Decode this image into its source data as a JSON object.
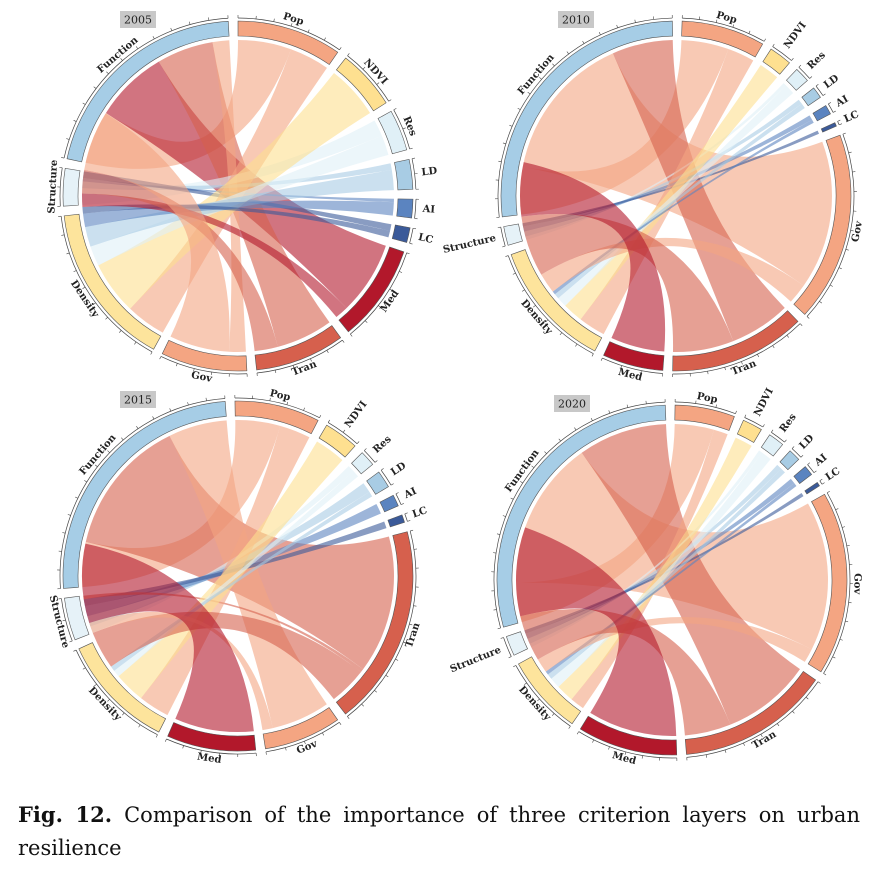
{
  "caption": {
    "label": "Fig. 12.",
    "text": "Comparison of the importance of three criterion layers on urban resilience"
  },
  "colors": {
    "Pop": "#f4a582",
    "NDVI": "#fee090",
    "Res": "#e0f0f7",
    "LD": "#a8cce4",
    "AI": "#5b84c0",
    "LC": "#3b5a99",
    "Med": "#b2182b",
    "Tran": "#d6604d",
    "Gov": "#f4a582",
    "Function": "#a6cde6",
    "Structure": "#e6f2f8",
    "Density": "#fde49c"
  },
  "chart_data": [
    {
      "type": "chord",
      "title": "2005",
      "groups": [
        {
          "name": "Pop",
          "value": 2.8
        },
        {
          "name": "NDVI",
          "value": 1.6
        },
        {
          "name": "Res",
          "value": 1.1
        },
        {
          "name": "LD",
          "value": 0.8
        },
        {
          "name": "AI",
          "value": 0.5
        },
        {
          "name": "LC",
          "value": 0.4
        },
        {
          "name": "Med",
          "value": 2.6
        },
        {
          "name": "Tran",
          "value": 2.4
        },
        {
          "name": "Gov",
          "value": 2.3
        },
        {
          "name": "Density",
          "value": 4.4
        },
        {
          "name": "Structure",
          "value": 1.0
        },
        {
          "name": "Function",
          "value": 6.0
        }
      ],
      "links": [
        {
          "source": "Function",
          "target": "Pop",
          "value": 1.6
        },
        {
          "source": "Function",
          "target": "Med",
          "value": 2.2
        },
        {
          "source": "Function",
          "target": "Tran",
          "value": 1.7
        },
        {
          "source": "Function",
          "target": "Gov",
          "value": 0.5
        },
        {
          "source": "Structure",
          "target": "Res",
          "value": 0.5
        },
        {
          "source": "Structure",
          "target": "LD",
          "value": 0.2
        },
        {
          "source": "Structure",
          "target": "AI",
          "value": 0.1
        },
        {
          "source": "Structure",
          "target": "LC",
          "value": 0.2
        },
        {
          "source": "Density",
          "target": "Pop",
          "value": 1.2
        },
        {
          "source": "Density",
          "target": "NDVI",
          "value": 1.6
        },
        {
          "source": "Density",
          "target": "Res",
          "value": 0.6
        },
        {
          "source": "Density",
          "target": "LD",
          "value": 0.6
        },
        {
          "source": "Density",
          "target": "AI",
          "value": 0.4
        },
        {
          "source": "Density",
          "target": "LC",
          "value": 0.2
        },
        {
          "source": "Density",
          "target": "Med",
          "value": 0.4
        },
        {
          "source": "Density",
          "target": "Tran",
          "value": 0.7
        },
        {
          "source": "Density",
          "target": "Gov",
          "value": 1.8
        }
      ]
    },
    {
      "type": "chord",
      "title": "2010",
      "groups": [
        {
          "name": "Pop",
          "value": 2.2
        },
        {
          "name": "NDVI",
          "value": 0.6
        },
        {
          "name": "Res",
          "value": 0.4
        },
        {
          "name": "LD",
          "value": 0.3
        },
        {
          "name": "AI",
          "value": 0.25
        },
        {
          "name": "LC",
          "value": 0.1
        },
        {
          "name": "Gov",
          "value": 5.0
        },
        {
          "name": "Tran",
          "value": 3.6
        },
        {
          "name": "Med",
          "value": 1.6
        },
        {
          "name": "Density",
          "value": 3.4
        },
        {
          "name": "Structure",
          "value": 0.5
        },
        {
          "name": "Function",
          "value": 7.6
        }
      ],
      "links": [
        {
          "source": "Function",
          "target": "Pop",
          "value": 1.4
        },
        {
          "source": "Function",
          "target": "Gov",
          "value": 4.4
        },
        {
          "source": "Function",
          "target": "Tran",
          "value": 1.8
        },
        {
          "source": "Structure",
          "target": "Res",
          "value": 0.1
        },
        {
          "source": "Structure",
          "target": "LD",
          "value": 0.15
        },
        {
          "source": "Structure",
          "target": "AI",
          "value": 0.15
        },
        {
          "source": "Structure",
          "target": "LC",
          "value": 0.1
        },
        {
          "source": "Density",
          "target": "Pop",
          "value": 0.8
        },
        {
          "source": "Density",
          "target": "NDVI",
          "value": 0.6
        },
        {
          "source": "Density",
          "target": "Res",
          "value": 0.3
        },
        {
          "source": "Density",
          "target": "LD",
          "value": 0.15
        },
        {
          "source": "Density",
          "target": "AI",
          "value": 0.1
        },
        {
          "source": "Density",
          "target": "Gov",
          "value": 0.6
        },
        {
          "source": "Density",
          "target": "Tran",
          "value": 1.8
        },
        {
          "source": "Density",
          "target": "Med",
          "value": 1.6
        }
      ]
    },
    {
      "type": "chord",
      "title": "2015",
      "groups": [
        {
          "name": "Pop",
          "value": 2.2
        },
        {
          "name": "NDVI",
          "value": 0.9
        },
        {
          "name": "Res",
          "value": 0.4
        },
        {
          "name": "LD",
          "value": 0.45
        },
        {
          "name": "AI",
          "value": 0.3
        },
        {
          "name": "LC",
          "value": 0.2
        },
        {
          "name": "Tran",
          "value": 5.2
        },
        {
          "name": "Gov",
          "value": 2.0
        },
        {
          "name": "Med",
          "value": 2.3
        },
        {
          "name": "Density",
          "value": 3.0
        },
        {
          "name": "Structure",
          "value": 1.1
        },
        {
          "name": "Function",
          "value": 7.0
        }
      ],
      "links": [
        {
          "source": "Function",
          "target": "Pop",
          "value": 1.3
        },
        {
          "source": "Function",
          "target": "Tran",
          "value": 4.0
        },
        {
          "source": "Function",
          "target": "Gov",
          "value": 1.7
        },
        {
          "source": "Structure",
          "target": "Res",
          "value": 0.2
        },
        {
          "source": "Structure",
          "target": "LD",
          "value": 0.3
        },
        {
          "source": "Structure",
          "target": "AI",
          "value": 0.3
        },
        {
          "source": "Structure",
          "target": "LC",
          "value": 0.2
        },
        {
          "source": "Structure",
          "target": "Tran",
          "value": 0.1
        },
        {
          "source": "Density",
          "target": "Pop",
          "value": 0.9
        },
        {
          "source": "Density",
          "target": "NDVI",
          "value": 0.9
        },
        {
          "source": "Density",
          "target": "Res",
          "value": 0.2
        },
        {
          "source": "Density",
          "target": "LD",
          "value": 0.15
        },
        {
          "source": "Density",
          "target": "Tran",
          "value": 1.1
        },
        {
          "source": "Density",
          "target": "Gov",
          "value": 0.3
        },
        {
          "source": "Density",
          "target": "Med",
          "value": 2.3
        }
      ]
    },
    {
      "type": "chord",
      "title": "2020",
      "groups": [
        {
          "name": "Pop",
          "value": 1.5
        },
        {
          "name": "NDVI",
          "value": 0.5
        },
        {
          "name": "Res",
          "value": 0.4
        },
        {
          "name": "LD",
          "value": 0.3
        },
        {
          "name": "AI",
          "value": 0.25
        },
        {
          "name": "LC",
          "value": 0.1
        },
        {
          "name": "Gov",
          "value": 4.6
        },
        {
          "name": "Tran",
          "value": 3.8
        },
        {
          "name": "Med",
          "value": 2.5
        },
        {
          "name": "Density",
          "value": 2.0
        },
        {
          "name": "Structure",
          "value": 0.5
        },
        {
          "name": "Function",
          "value": 7.8
        }
      ],
      "links": [
        {
          "source": "Function",
          "target": "Pop",
          "value": 1.1
        },
        {
          "source": "Function",
          "target": "Gov",
          "value": 4.2
        },
        {
          "source": "Function",
          "target": "Tran",
          "value": 2.5
        },
        {
          "source": "Structure",
          "target": "Res",
          "value": 0.1
        },
        {
          "source": "Structure",
          "target": "LD",
          "value": 0.15
        },
        {
          "source": "Structure",
          "target": "AI",
          "value": 0.15
        },
        {
          "source": "Structure",
          "target": "LC",
          "value": 0.1
        },
        {
          "source": "Density",
          "target": "Pop",
          "value": 0.4
        },
        {
          "source": "Density",
          "target": "NDVI",
          "value": 0.5
        },
        {
          "source": "Density",
          "target": "Res",
          "value": 0.3
        },
        {
          "source": "Density",
          "target": "LD",
          "value": 0.15
        },
        {
          "source": "Density",
          "target": "AI",
          "value": 0.1
        },
        {
          "source": "Density",
          "target": "Gov",
          "value": 0.4
        },
        {
          "source": "Density",
          "target": "Tran",
          "value": 1.3
        },
        {
          "source": "Density",
          "target": "Med",
          "value": 2.5
        }
      ]
    }
  ]
}
